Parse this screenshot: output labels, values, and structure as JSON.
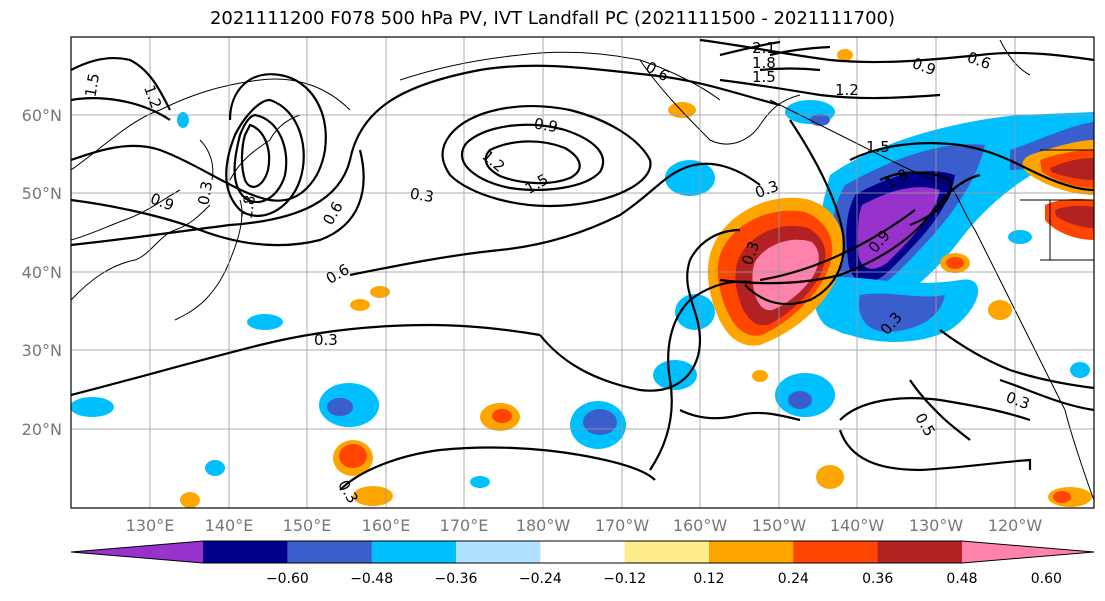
{
  "title": "2021111200 F078 500 hPa PV, IVT Landfall PC (2021111500 - 2021111700)",
  "lat_ticks": [
    "60°N",
    "50°N",
    "40°N",
    "30°N",
    "20°N"
  ],
  "lon_ticks": [
    "130°E",
    "140°E",
    "150°E",
    "160°E",
    "170°E",
    "180°W",
    "170°W",
    "160°W",
    "150°W",
    "140°W",
    "130°W",
    "120°W"
  ],
  "contour_labels": [
    "1.5",
    "1.2",
    "0.9",
    "0.6",
    "0.3",
    "2.1",
    "1.8",
    "1.5",
    "0.6",
    "1.2",
    "0.9",
    "0.6",
    "1.5",
    "1.8",
    "0.9",
    "0.3",
    "0.3",
    "0.3",
    "0.3",
    "0.3",
    "0.6",
    "0.3",
    "0.3",
    "0.9",
    "1.2",
    "1.5",
    "1.8",
    "0.5"
  ],
  "colorbar": {
    "tick_labels": [
      "−0.60",
      "−0.48",
      "−0.36",
      "−0.24",
      "−0.12",
      "0.12",
      "0.24",
      "0.36",
      "0.48",
      "0.60"
    ],
    "colors": [
      "#9932cc",
      "#00008b",
      "#3a5fcd",
      "#00bfff",
      "#b0e2ff",
      "#ffffff",
      "#ffec8b",
      "#ffa500",
      "#ff4500",
      "#b22222",
      "#ff82ab"
    ]
  }
}
